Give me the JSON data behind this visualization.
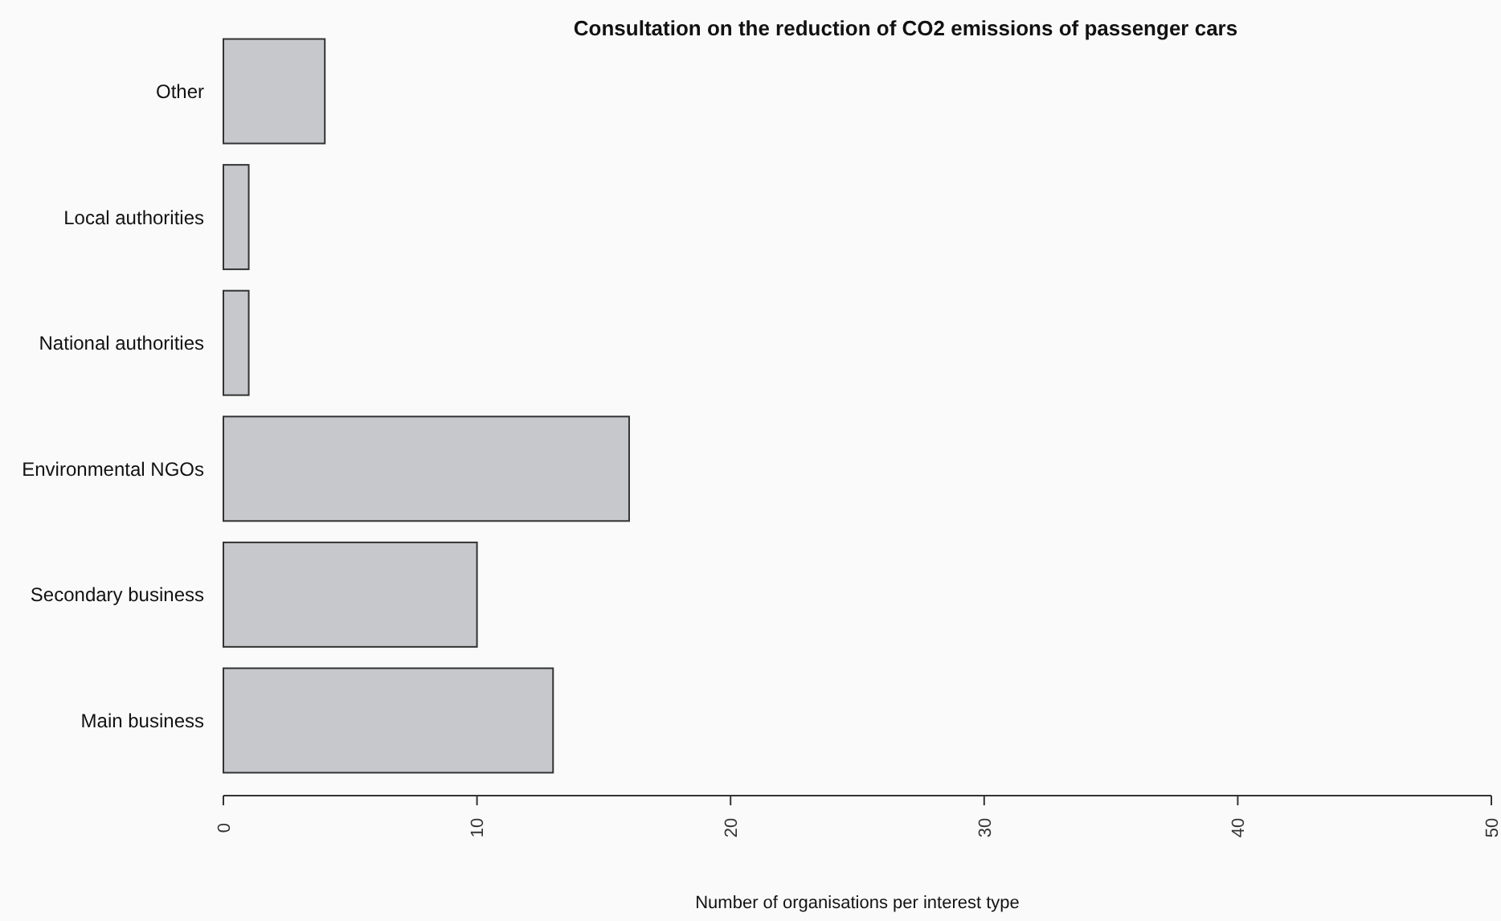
{
  "chart_data": {
    "type": "bar",
    "orientation": "horizontal",
    "title": "Consultation on the reduction of CO2 emissions of passenger cars",
    "xlabel": "Number of organisations per interest type",
    "categories": [
      "Other",
      "Local authorities",
      "National authorities",
      "Environmental NGOs",
      "Secondary business",
      "Main business"
    ],
    "values": [
      4,
      1,
      1,
      16,
      10,
      13
    ],
    "color": "#c6c8cc",
    "xlim": [
      0,
      50
    ],
    "xticks": [
      0,
      10,
      20,
      30,
      40,
      50
    ],
    "grid": false
  }
}
